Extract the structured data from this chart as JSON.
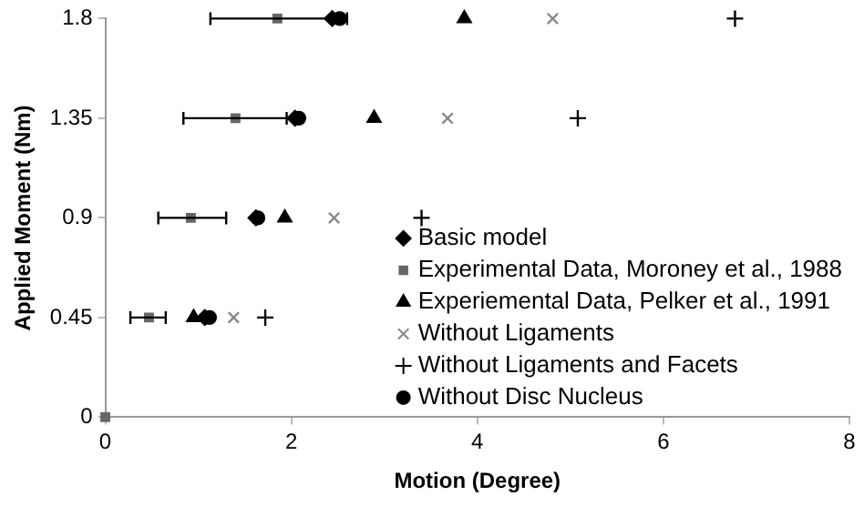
{
  "chart_data": {
    "type": "scatter",
    "xlabel": "Motion (Degree)",
    "ylabel": "Applied Moment (Nm)",
    "xlim": [
      0,
      8
    ],
    "xticks": [
      0,
      2,
      4,
      6,
      8
    ],
    "ylim": [
      0,
      1.8
    ],
    "yticks": [
      0,
      0.45,
      0.9,
      1.35,
      1.8
    ],
    "grid": false,
    "legend": "bottom right",
    "series": [
      {
        "name": "Basic model",
        "color": "#000000",
        "marker": "diamond",
        "x": [
          1.07,
          1.62,
          2.04,
          2.44
        ],
        "values": [
          0.45,
          0.9,
          1.35,
          1.8
        ]
      },
      {
        "name": "Experimental Data, Moroney et al., 1988",
        "color": "#666666",
        "marker": "square",
        "x": [
          0,
          0.47,
          0.92,
          1.4,
          1.85
        ],
        "values": [
          0,
          0.45,
          0.9,
          1.35,
          1.8
        ],
        "xerrors": [
          null,
          [
            0.27,
            0.65
          ],
          [
            0.57,
            1.3
          ],
          [
            0.84,
            1.95
          ],
          [
            1.13,
            2.6
          ]
        ]
      },
      {
        "name": "Experiemental Data, Pelker et al., 1991",
        "color": "#000000",
        "marker": "triangle",
        "x": [
          0.95,
          1.93,
          2.89,
          3.86
        ],
        "values": [
          0.45,
          0.9,
          1.35,
          1.8
        ]
      },
      {
        "name": "Without Ligaments",
        "color": "#888888",
        "marker": "cross",
        "x": [
          1.38,
          2.46,
          3.68,
          4.81
        ],
        "values": [
          0.45,
          0.9,
          1.35,
          1.8
        ]
      },
      {
        "name": "Without Ligaments and Facets",
        "color": "#000000",
        "marker": "plus",
        "x": [
          1.72,
          3.4,
          5.08,
          6.77
        ],
        "values": [
          0.45,
          0.9,
          1.35,
          1.8
        ]
      },
      {
        "name": "Without Disc Nucleus",
        "color": "#000000",
        "marker": "circle",
        "x": [
          1.12,
          1.64,
          2.08,
          2.52
        ],
        "values": [
          0.45,
          0.9,
          1.35,
          1.8
        ]
      }
    ]
  }
}
